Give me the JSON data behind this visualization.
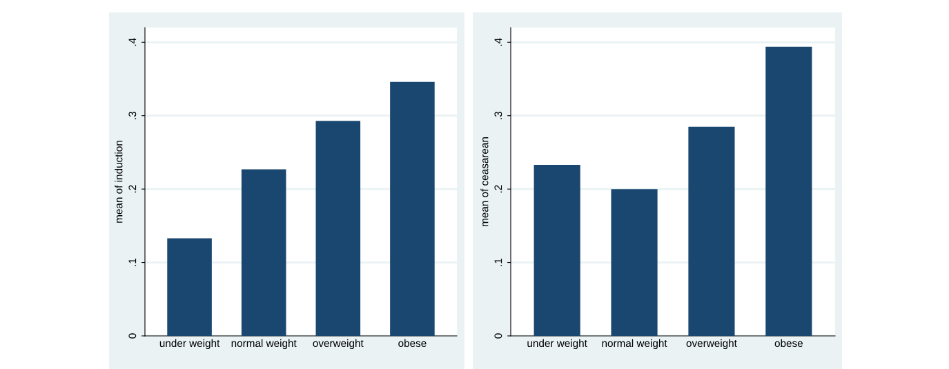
{
  "chart_data": [
    {
      "type": "bar",
      "categories": [
        "under weight",
        "normal weight",
        "overweight",
        "obese"
      ],
      "values": [
        0.133,
        0.227,
        0.293,
        0.346
      ],
      "color": "#1a476f",
      "ylabel": "mean of induction",
      "ylim": [
        0,
        0.42
      ],
      "yticks": [
        {
          "value": 0,
          "label": "0"
        },
        {
          "value": 0.1,
          "label": ".1"
        },
        {
          "value": 0.2,
          "label": ".2"
        },
        {
          "value": 0.3,
          "label": ".3"
        },
        {
          "value": 0.4,
          "label": ".4"
        }
      ],
      "grid": "y"
    },
    {
      "type": "bar",
      "categories": [
        "under weight",
        "normal weight",
        "overweight",
        "obese"
      ],
      "values": [
        0.233,
        0.2,
        0.285,
        0.394
      ],
      "color": "#1a476f",
      "ylabel": "mean of ceasarean",
      "ylim": [
        0,
        0.42
      ],
      "yticks": [
        {
          "value": 0,
          "label": "0"
        },
        {
          "value": 0.1,
          "label": ".1"
        },
        {
          "value": 0.2,
          "label": ".2"
        },
        {
          "value": 0.3,
          "label": ".3"
        },
        {
          "value": 0.4,
          "label": ".4"
        }
      ],
      "grid": "y"
    }
  ]
}
